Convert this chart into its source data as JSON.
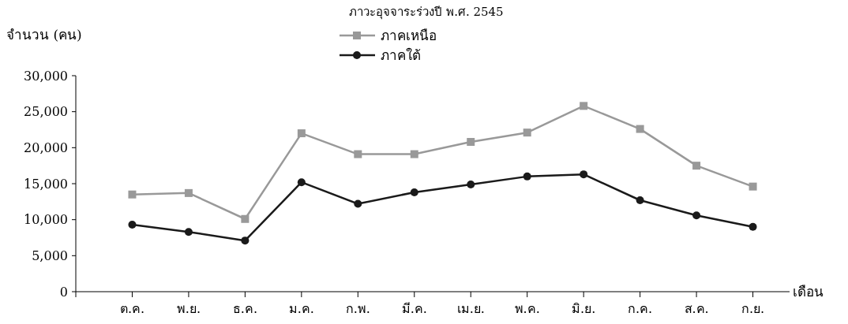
{
  "chart_data": {
    "type": "line",
    "title": "ภาวะอุจจาระร่วงปี พ.ศ. 2545",
    "ylabel": "จำนวน (คน)",
    "xlabel": "เดือน",
    "categories": [
      "ต.ค.",
      "พ.ย.",
      "ธ.ค.",
      "ม.ค.",
      "ก.พ.",
      "มี.ค.",
      "เม.ย.",
      "พ.ค.",
      "มิ.ย.",
      "ก.ค.",
      "ส.ค.",
      "ก.ย."
    ],
    "series": [
      {
        "name": "ภาคเหนือ",
        "color": "#999999",
        "marker": "square",
        "values": [
          13500,
          13700,
          10100,
          22000,
          19100,
          19100,
          20800,
          22100,
          25800,
          22600,
          17500,
          14600
        ]
      },
      {
        "name": "ภาคใต้",
        "color": "#1a1a1a",
        "marker": "circle",
        "values": [
          9300,
          8300,
          7100,
          15200,
          12200,
          13800,
          14900,
          16000,
          16300,
          12700,
          10600,
          9000
        ]
      }
    ],
    "ylim": [
      0,
      30000
    ],
    "yticks": [
      {
        "value": 0,
        "label": "0"
      },
      {
        "value": 5000,
        "label": "5,000"
      },
      {
        "value": 10000,
        "label": "10,000"
      },
      {
        "value": 15000,
        "label": "15,000"
      },
      {
        "value": 20000,
        "label": "20,000"
      },
      {
        "value": 25000,
        "label": "25,000"
      },
      {
        "value": 30000,
        "label": "30,000"
      }
    ],
    "grid": false,
    "legend": "top",
    "line_style": "solid"
  }
}
